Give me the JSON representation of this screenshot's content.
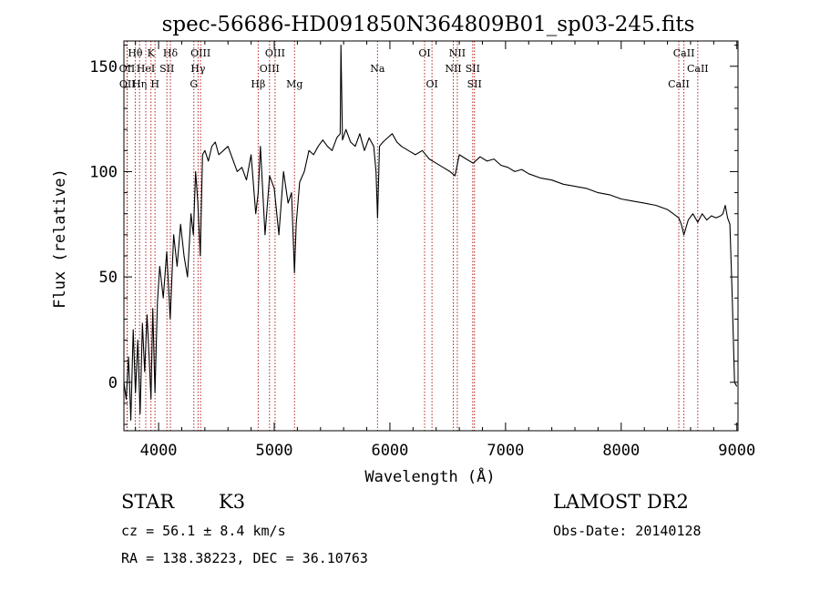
{
  "chart_data": {
    "type": "line",
    "title": "spec-56686-HD091850N364809B01_sp03-245.fits",
    "xlabel": "Wavelength (Å)",
    "ylabel": "Flux (relative)",
    "xlim": [
      3700,
      9010
    ],
    "ylim": [
      -23,
      162
    ],
    "xticks": [
      4000,
      5000,
      6000,
      7000,
      8000,
      9000
    ],
    "yticks": [
      0,
      50,
      100,
      150
    ],
    "grid": false,
    "lines": [
      {
        "label": "Hθ",
        "x": 3798,
        "row": 0
      },
      {
        "label": "OII",
        "x": 3727,
        "row": 1
      },
      {
        "label": "OII",
        "x": 3729,
        "row": 2
      },
      {
        "label": "Hη",
        "x": 3835,
        "row": 2
      },
      {
        "label": "HeI",
        "x": 3889,
        "row": 1
      },
      {
        "label": "K",
        "x": 3934,
        "row": 0
      },
      {
        "label": "H",
        "x": 3969,
        "row": 2
      },
      {
        "label": "SII",
        "x": 4072,
        "row": 1
      },
      {
        "label": "Hδ",
        "x": 4102,
        "row": 0
      },
      {
        "label": "OIII",
        "x": 4363,
        "row": 0
      },
      {
        "label": "Hγ",
        "x": 4341,
        "row": 1
      },
      {
        "label": "G",
        "x": 4305,
        "row": 2
      },
      {
        "label": "Hβ",
        "x": 4861,
        "row": 2
      },
      {
        "label": "OIII",
        "x": 4959,
        "row": 1
      },
      {
        "label": "OIII",
        "x": 5007,
        "row": 0
      },
      {
        "label": "Mg",
        "x": 5175,
        "row": 2
      },
      {
        "label": "Na",
        "x": 5893,
        "row": 1
      },
      {
        "label": "OI",
        "x": 6300,
        "row": 0
      },
      {
        "label": "OI",
        "x": 6364,
        "row": 2
      },
      {
        "label": "NII",
        "x": 6548,
        "row": 1
      },
      {
        "label": "NII",
        "x": 6583,
        "row": 0
      },
      {
        "label": "SII",
        "x": 6716,
        "row": 1
      },
      {
        "label": "SII",
        "x": 6731,
        "row": 2
      },
      {
        "label": "CaII",
        "x": 8498,
        "row": 2
      },
      {
        "label": "CaII",
        "x": 8542,
        "row": 0
      },
      {
        "label": "CaII",
        "x": 8662,
        "row": 1
      }
    ],
    "series": [
      {
        "x": [
          3700,
          3720,
          3740,
          3760,
          3780,
          3800,
          3820,
          3840,
          3860,
          3880,
          3900,
          3920,
          3934,
          3950,
          3969,
          3990,
          4010,
          4040,
          4070,
          4100,
          4130,
          4160,
          4190,
          4220,
          4250,
          4280,
          4300,
          4320,
          4340,
          4360,
          4380,
          4400,
          4430,
          4460,
          4490,
          4520,
          4560,
          4600,
          4640,
          4680,
          4720,
          4760,
          4800,
          4840,
          4861,
          4880,
          4920,
          4960,
          5000,
          5040,
          5080,
          5120,
          5150,
          5175,
          5190,
          5220,
          5260,
          5300,
          5340,
          5380,
          5420,
          5460,
          5500,
          5540,
          5570,
          5577,
          5590,
          5620,
          5660,
          5700,
          5740,
          5780,
          5820,
          5860,
          5880,
          5893,
          5910,
          5940,
          5980,
          6020,
          6060,
          6100,
          6160,
          6220,
          6280,
          6340,
          6400,
          6460,
          6520,
          6563,
          6600,
          6660,
          6720,
          6780,
          6840,
          6900,
          6960,
          7020,
          7080,
          7140,
          7200,
          7300,
          7400,
          7500,
          7600,
          7700,
          7800,
          7900,
          8000,
          8100,
          8200,
          8300,
          8400,
          8450,
          8498,
          8520,
          8542,
          8580,
          8620,
          8662,
          8700,
          8740,
          8780,
          8820,
          8860,
          8880,
          8900,
          8920,
          8940,
          8960,
          8980,
          9000
        ],
        "y": [
          0,
          -8,
          12,
          -18,
          25,
          -5,
          20,
          -15,
          28,
          5,
          32,
          10,
          -8,
          35,
          -5,
          38,
          55,
          40,
          62,
          30,
          70,
          55,
          75,
          60,
          50,
          80,
          70,
          100,
          85,
          60,
          108,
          110,
          105,
          112,
          114,
          108,
          110,
          112,
          106,
          100,
          102,
          96,
          108,
          80,
          90,
          112,
          70,
          98,
          92,
          70,
          100,
          85,
          90,
          52,
          75,
          95,
          100,
          110,
          108,
          112,
          115,
          112,
          110,
          116,
          118,
          160,
          115,
          120,
          114,
          112,
          118,
          110,
          116,
          112,
          100,
          78,
          112,
          114,
          116,
          118,
          114,
          112,
          110,
          108,
          110,
          106,
          104,
          102,
          100,
          98,
          108,
          106,
          104,
          107,
          105,
          106,
          103,
          102,
          100,
          101,
          99,
          97,
          96,
          94,
          93,
          92,
          90,
          89,
          87,
          86,
          85,
          84,
          82,
          80,
          78,
          75,
          70,
          77,
          80,
          76,
          80,
          77,
          79,
          78,
          79,
          80,
          84,
          78,
          75,
          40,
          0,
          -2
        ]
      }
    ]
  },
  "info": {
    "class": "STAR",
    "subclass": "K3",
    "cz": "cz = 56.1 ± 8.4 km/s",
    "radec": "RA = 138.38223, DEC =  36.10763",
    "survey": "LAMOST DR2",
    "obsdate": "Obs-Date: 20140128"
  }
}
